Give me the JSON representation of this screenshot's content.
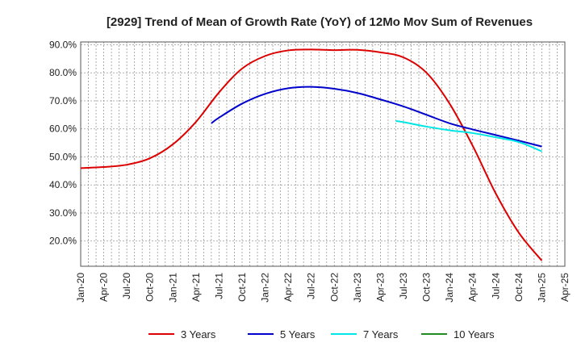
{
  "chart_data": {
    "type": "line",
    "title": "[2929]  Trend of Mean of Growth Rate (YoY) of 12Mo Mov Sum of Revenues",
    "xlabel": "",
    "ylabel": "",
    "ylim": [
      11,
      91
    ],
    "xlim": [
      "Jan-20",
      "Apr-25"
    ],
    "y_ticks": [
      "20.0%",
      "30.0%",
      "40.0%",
      "50.0%",
      "60.0%",
      "70.0%",
      "80.0%",
      "90.0%"
    ],
    "y_tick_values": [
      20,
      30,
      40,
      50,
      60,
      70,
      80,
      90
    ],
    "x_ticks": [
      "Jan-20",
      "Apr-20",
      "Jul-20",
      "Oct-20",
      "Jan-21",
      "Apr-21",
      "Jul-21",
      "Oct-21",
      "Jan-22",
      "Apr-22",
      "Jul-22",
      "Oct-22",
      "Jan-23",
      "Apr-23",
      "Jul-23",
      "Oct-23",
      "Jan-24",
      "Apr-24",
      "Jul-24",
      "Oct-24",
      "Jan-25",
      "Apr-25"
    ],
    "grid": true,
    "legend_position": "bottom",
    "series": [
      {
        "name": "3 Years",
        "color": "#dd0000",
        "points": [
          [
            "Jan-20",
            46.0
          ],
          [
            "Apr-20",
            46.4
          ],
          [
            "Jul-20",
            47.2
          ],
          [
            "Oct-20",
            49.5
          ],
          [
            "Jan-21",
            54.5
          ],
          [
            "Apr-21",
            62.5
          ],
          [
            "Jul-21",
            73.0
          ],
          [
            "Oct-21",
            81.5
          ],
          [
            "Jan-22",
            86.0
          ],
          [
            "Apr-22",
            88.0
          ],
          [
            "Jul-22",
            88.3
          ],
          [
            "Oct-22",
            88.1
          ],
          [
            "Jan-23",
            88.2
          ],
          [
            "Apr-23",
            87.3
          ],
          [
            "Jul-23",
            85.5
          ],
          [
            "Oct-23",
            80.0
          ],
          [
            "Jan-24",
            69.0
          ],
          [
            "Apr-24",
            54.0
          ],
          [
            "Jul-24",
            37.0
          ],
          [
            "Oct-24",
            23.0
          ],
          [
            "Jan-25",
            13.0
          ]
        ]
      },
      {
        "name": "5 Years",
        "color": "#0000cc",
        "points": [
          [
            "Jun-21",
            62.0
          ],
          [
            "Jul-21",
            64.0
          ],
          [
            "Oct-21",
            69.0
          ],
          [
            "Jan-22",
            72.5
          ],
          [
            "Apr-22",
            74.5
          ],
          [
            "Jul-22",
            75.0
          ],
          [
            "Oct-22",
            74.3
          ],
          [
            "Jan-23",
            72.8
          ],
          [
            "Apr-23",
            70.5
          ],
          [
            "Jul-23",
            68.0
          ],
          [
            "Oct-23",
            65.0
          ],
          [
            "Jan-24",
            62.0
          ],
          [
            "Apr-24",
            59.8
          ],
          [
            "Jul-24",
            57.8
          ],
          [
            "Oct-24",
            55.8
          ],
          [
            "Jan-25",
            53.7
          ]
        ]
      },
      {
        "name": "7 Years",
        "color": "#00e5e5",
        "points": [
          [
            "Jun-23",
            62.8
          ],
          [
            "Jul-23",
            62.4
          ],
          [
            "Oct-23",
            60.8
          ],
          [
            "Jan-24",
            59.5
          ],
          [
            "Apr-24",
            58.5
          ],
          [
            "Jul-24",
            57.0
          ],
          [
            "Oct-24",
            55.3
          ],
          [
            "Jan-25",
            52.0
          ]
        ]
      },
      {
        "name": "10 Years",
        "color": "#228b22",
        "points": []
      }
    ]
  }
}
